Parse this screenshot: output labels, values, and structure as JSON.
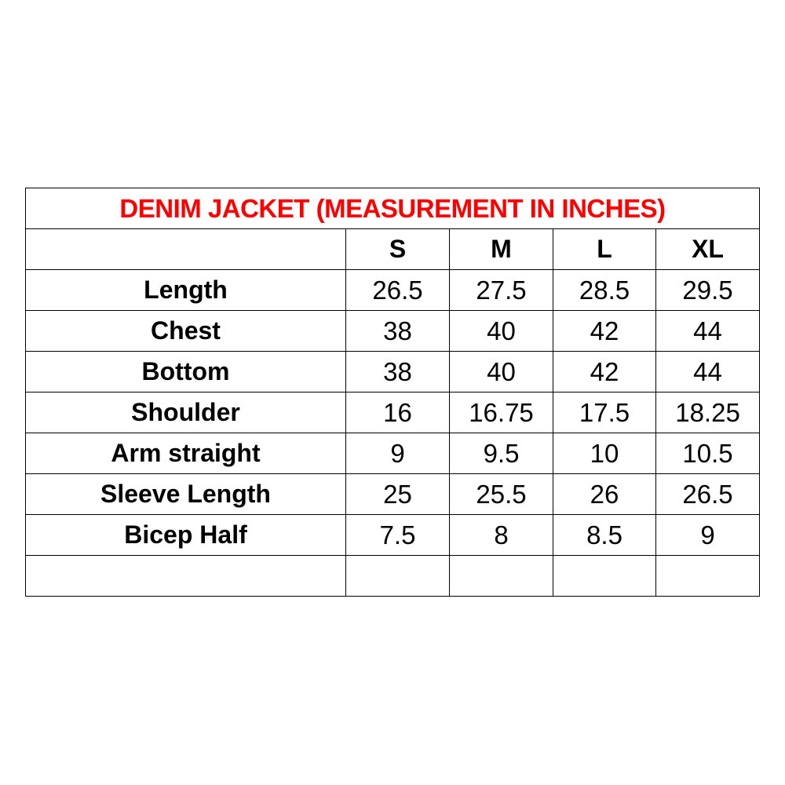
{
  "title": "DENIM JACKET (MEASUREMENT IN INCHES)",
  "title_color": "#ff0000",
  "sizes": [
    "S",
    "M",
    "L",
    "XL"
  ],
  "rows": [
    {
      "label": "Length",
      "values": [
        "26.5",
        "27.5",
        "28.5",
        "29.5"
      ]
    },
    {
      "label": "Chest",
      "values": [
        "38",
        "40",
        "42",
        "44"
      ]
    },
    {
      "label": "Bottom",
      "values": [
        "38",
        "40",
        "42",
        "44"
      ]
    },
    {
      "label": "Shoulder",
      "values": [
        "16",
        "16.75",
        "17.5",
        "18.25"
      ]
    },
    {
      "label": "Arm straight",
      "values": [
        "9",
        "9.5",
        "10",
        "10.5"
      ]
    },
    {
      "label": "Sleeve Length",
      "values": [
        "25",
        "25.5",
        "26",
        "26.5"
      ]
    },
    {
      "label": "Bicep Half",
      "values": [
        "7.5",
        "8",
        "8.5",
        "9"
      ]
    }
  ]
}
